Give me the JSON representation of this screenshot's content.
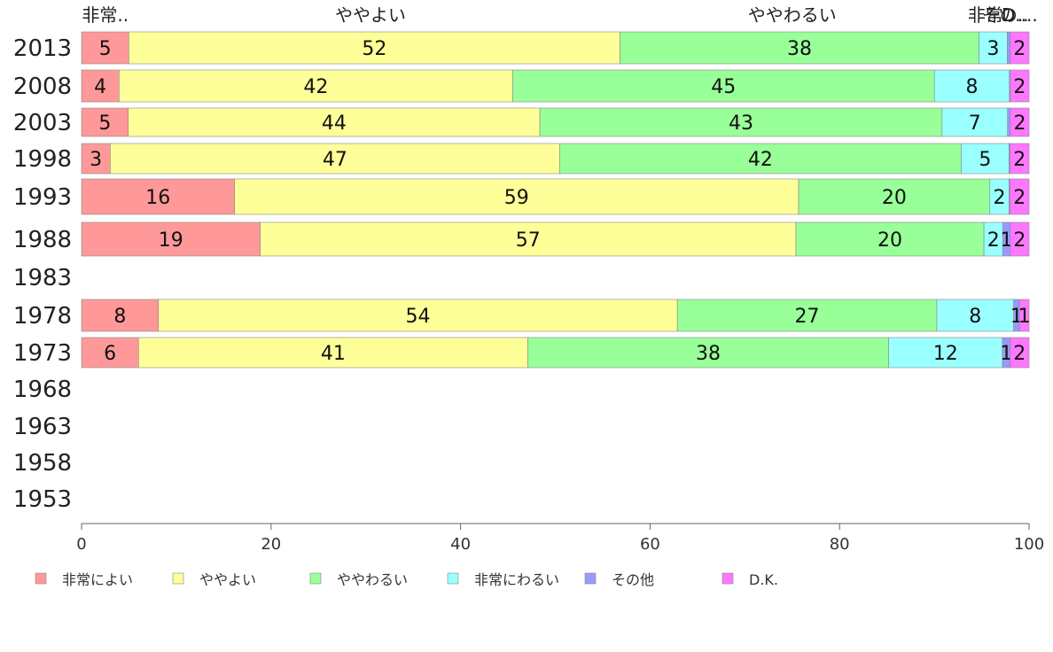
{
  "chart_data": {
    "type": "bar",
    "orientation": "horizontal",
    "stacked": true,
    "categories": [
      "2013",
      "2008",
      "2003",
      "1998",
      "1993",
      "1988",
      "1983",
      "1978",
      "1973",
      "1968",
      "1963",
      "1958",
      "1953"
    ],
    "series": [
      {
        "name": "非常によい",
        "color": "#ff9999",
        "values": [
          5,
          4,
          5,
          3,
          16,
          19,
          null,
          8,
          6,
          null,
          null,
          null,
          null
        ],
        "display": [
          "5",
          "4",
          "5",
          "3",
          "16",
          "19",
          "",
          "8",
          "6",
          "",
          "",
          "",
          ""
        ]
      },
      {
        "name": "ややよい",
        "color": "#ffff99",
        "values": [
          52,
          42,
          44,
          47,
          59,
          57,
          null,
          54,
          41,
          null,
          null,
          null,
          null
        ],
        "display": [
          "52",
          "42",
          "44",
          "47",
          "59",
          "57",
          "",
          "54",
          "41",
          "",
          "",
          "",
          ""
        ]
      },
      {
        "name": "ややわるい",
        "color": "#99ff99",
        "values": [
          38,
          45,
          43,
          42,
          20,
          20,
          null,
          27,
          38,
          null,
          null,
          null,
          null
        ],
        "display": [
          "38",
          "45",
          "43",
          "42",
          "20",
          "20",
          "",
          "27",
          "38",
          "",
          "",
          "",
          ""
        ]
      },
      {
        "name": "非常にわるい",
        "color": "#99ffff",
        "values": [
          3,
          8,
          7,
          5,
          2,
          2,
          null,
          8,
          12,
          null,
          null,
          null,
          null
        ],
        "display": [
          "3",
          "8",
          "7",
          "5",
          "2",
          "2",
          "",
          "8",
          "12",
          "",
          "",
          "",
          ""
        ]
      },
      {
        "name": "その他",
        "color": "#9999ff",
        "values": [
          0.3,
          0.1,
          0.3,
          0.1,
          0.1,
          0.8,
          null,
          0.6,
          0.8,
          null,
          null,
          null,
          null
        ],
        "display": [
          "",
          "",
          "",
          "",
          "",
          "1",
          "",
          "1",
          "1",
          "",
          "",
          "",
          ""
        ]
      },
      {
        "name": "D.K.",
        "color": "#ff77ff",
        "values": [
          2,
          2,
          2,
          2,
          2,
          2,
          null,
          1,
          2,
          null,
          null,
          null,
          null
        ],
        "display": [
          "2",
          "2",
          "2",
          "2",
          "2",
          "2",
          "",
          "1",
          "2",
          "",
          "",
          "",
          ""
        ]
      }
    ],
    "top_labels": [
      {
        "text": "非常..",
        "value": 2.5
      },
      {
        "text": "ややよい",
        "value": 30.5
      },
      {
        "text": "ややわるい",
        "value": 75
      },
      {
        "text": "非常..",
        "value": 96
      },
      {
        "text": "その..",
        "value": 97.5
      },
      {
        "text": "D....",
        "value": 99
      }
    ],
    "xlim": [
      0,
      100
    ],
    "xticks": [
      0,
      20,
      40,
      60,
      80,
      100
    ],
    "xlabel": "",
    "ylabel": "",
    "title": "",
    "grid": false,
    "legend_position": "bottom"
  }
}
